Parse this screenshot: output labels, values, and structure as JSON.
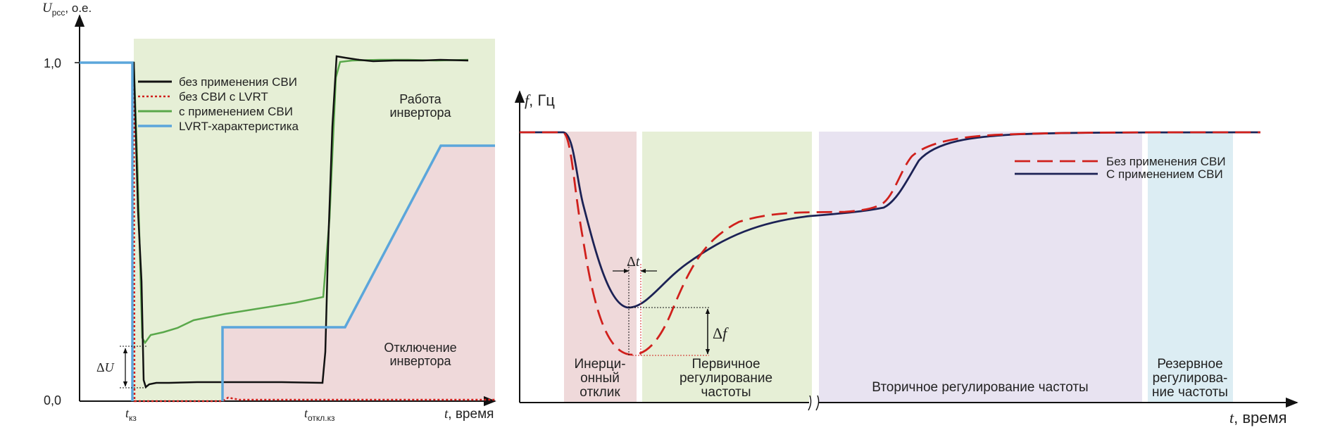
{
  "chart_data": [
    {
      "type": "line",
      "ylabel": {
        "sym": "U",
        "sub": "рсс",
        "unit": ", о.е."
      },
      "xlabel": {
        "sym": "t",
        "unit": ", время"
      },
      "y_ticks": [
        {
          "value": 1.0,
          "label": "1,0"
        },
        {
          "value": 0.0,
          "label": "0,0"
        }
      ],
      "x_ticks": [
        {
          "value": 0,
          "sym": "t",
          "sub": "кз"
        },
        {
          "value": 1,
          "sym": "t",
          "sub": "откл.кз"
        }
      ],
      "zones": [
        {
          "lines": [
            "Работа",
            "инвертора"
          ],
          "color": "#e6efd6"
        },
        {
          "lines": [
            "Отключение",
            "инвертора"
          ],
          "color": "#efd9da"
        }
      ],
      "legend_position": "top-left",
      "series": [
        {
          "name": "без применения СВИ",
          "color": "#111111",
          "dash": "solid"
        },
        {
          "name": "без СВИ с LVRT",
          "color": "#d0201c",
          "dash": "dotted"
        },
        {
          "name": "с применением СВИ",
          "color": "#5aa84b",
          "dash": "solid"
        },
        {
          "name": "LVRT-характеристика",
          "color": "#5ba6db",
          "dash": "solid"
        }
      ],
      "annotation": {
        "sym": "Δ",
        "var": "U"
      }
    },
    {
      "type": "line",
      "ylabel": {
        "sym": "f",
        "unit": ", Гц"
      },
      "xlabel": {
        "sym": "t",
        "unit": ", время"
      },
      "zones": [
        {
          "lines": [
            "Инерци-",
            "онный",
            "отклик"
          ],
          "color": "#efd9da"
        },
        {
          "lines": [
            "Первичное",
            "регулирование",
            "частоты"
          ],
          "color": "#e6efd6"
        },
        {
          "lines": [
            "Вторичное регулирование частоты"
          ],
          "color": "#e8e3f1"
        },
        {
          "lines": [
            "Резервное",
            "регулирова-",
            "ние частоты"
          ],
          "color": "#dcedf3"
        }
      ],
      "legend_position": "top-right",
      "series": [
        {
          "name": "Без применения СВИ",
          "color": "#d0201c",
          "dash": "dashed"
        },
        {
          "name": "С применением СВИ",
          "color": "#1c2255",
          "dash": "solid"
        }
      ],
      "annotations": [
        {
          "sym": "Δ",
          "var": "t"
        },
        {
          "sym": "Δ",
          "var": "f"
        }
      ]
    }
  ]
}
